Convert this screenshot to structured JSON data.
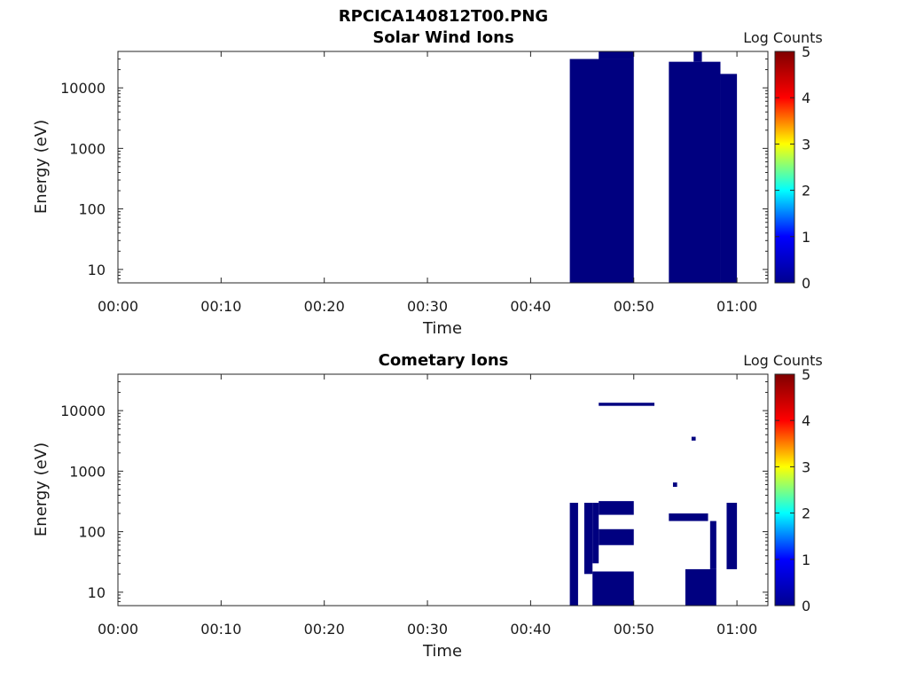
{
  "figure": {
    "title": "RPCICA140812T00.PNG"
  },
  "colors": {
    "data": "#000080",
    "axis": "#262626"
  },
  "colorbar": {
    "label": "Log Counts",
    "range": [
      0,
      5
    ],
    "ticks": [
      "0",
      "1",
      "2",
      "3",
      "4",
      "5"
    ],
    "stops": [
      "#00008f",
      "#0000ff",
      "#00ffff",
      "#ffff00",
      "#ff0000",
      "#800000"
    ]
  },
  "chart_data": [
    {
      "type": "heatmap",
      "title": "Solar Wind Ions",
      "xlabel": "Time",
      "ylabel": "Energy (eV)",
      "xlim_minutes": [
        0,
        63
      ],
      "ylim": [
        6,
        40000
      ],
      "yscale": "log",
      "xticks": [
        {
          "v": 0,
          "label": "00:00"
        },
        {
          "v": 10,
          "label": "00:10"
        },
        {
          "v": 20,
          "label": "00:20"
        },
        {
          "v": 30,
          "label": "00:30"
        },
        {
          "v": 40,
          "label": "00:40"
        },
        {
          "v": 50,
          "label": "00:50"
        },
        {
          "v": 60,
          "label": "01:00"
        }
      ],
      "yticks": [
        {
          "v": 10,
          "label": "10"
        },
        {
          "v": 100,
          "label": "100"
        },
        {
          "v": 1000,
          "label": "1000"
        },
        {
          "v": 10000,
          "label": "10000"
        }
      ],
      "cells": [
        {
          "t0": 43.8,
          "t1": 50.0,
          "e0": 6,
          "e1": 30000,
          "log_counts": 0.1
        },
        {
          "t0": 46.6,
          "t1": 50.0,
          "e0": 30000,
          "e1": 40000,
          "log_counts": 0.1
        },
        {
          "t0": 53.4,
          "t1": 58.4,
          "e0": 6,
          "e1": 27000,
          "log_counts": 0.1
        },
        {
          "t0": 58.4,
          "t1": 60.0,
          "e0": 6,
          "e1": 17000,
          "log_counts": 0.1
        },
        {
          "t0": 55.8,
          "t1": 56.6,
          "e0": 27000,
          "e1": 40000,
          "log_counts": 0.1
        }
      ]
    },
    {
      "type": "heatmap",
      "title": "Cometary Ions",
      "xlabel": "Time",
      "ylabel": "Energy (eV)",
      "xlim_minutes": [
        0,
        63
      ],
      "ylim": [
        6,
        40000
      ],
      "yscale": "log",
      "xticks": [
        {
          "v": 0,
          "label": "00:00"
        },
        {
          "v": 10,
          "label": "00:10"
        },
        {
          "v": 20,
          "label": "00:20"
        },
        {
          "v": 30,
          "label": "00:30"
        },
        {
          "v": 40,
          "label": "00:40"
        },
        {
          "v": 50,
          "label": "00:50"
        },
        {
          "v": 60,
          "label": "01:00"
        }
      ],
      "yticks": [
        {
          "v": 10,
          "label": "10"
        },
        {
          "v": 100,
          "label": "100"
        },
        {
          "v": 1000,
          "label": "1000"
        },
        {
          "v": 10000,
          "label": "10000"
        }
      ],
      "cells": [
        {
          "t0": 43.8,
          "t1": 44.6,
          "e0": 6,
          "e1": 300,
          "log_counts": 0.1
        },
        {
          "t0": 45.2,
          "t1": 46.0,
          "e0": 20,
          "e1": 300,
          "log_counts": 0.1
        },
        {
          "t0": 46.0,
          "t1": 50.0,
          "e0": 6,
          "e1": 22,
          "log_counts": 0.1
        },
        {
          "t0": 46.6,
          "t1": 50.0,
          "e0": 60,
          "e1": 110,
          "log_counts": 0.1
        },
        {
          "t0": 46.6,
          "t1": 50.0,
          "e0": 190,
          "e1": 320,
          "log_counts": 0.1
        },
        {
          "t0": 46.0,
          "t1": 46.6,
          "e0": 30,
          "e1": 300,
          "log_counts": 0.1
        },
        {
          "t0": 46.6,
          "t1": 52.0,
          "e0": 12000,
          "e1": 13500,
          "log_counts": 0.1
        },
        {
          "t0": 55.0,
          "t1": 58.0,
          "e0": 6,
          "e1": 24,
          "log_counts": 0.1
        },
        {
          "t0": 59.0,
          "t1": 60.0,
          "e0": 24,
          "e1": 300,
          "log_counts": 0.1
        },
        {
          "t0": 57.4,
          "t1": 58.0,
          "e0": 24,
          "e1": 150,
          "log_counts": 0.1
        },
        {
          "t0": 53.4,
          "t1": 57.2,
          "e0": 150,
          "e1": 200,
          "log_counts": 0.1
        },
        {
          "t0": 55.6,
          "t1": 56.0,
          "e0": 3200,
          "e1": 3700,
          "log_counts": 0.1
        },
        {
          "t0": 53.8,
          "t1": 54.2,
          "e0": 550,
          "e1": 650,
          "log_counts": 0.1
        }
      ]
    }
  ]
}
